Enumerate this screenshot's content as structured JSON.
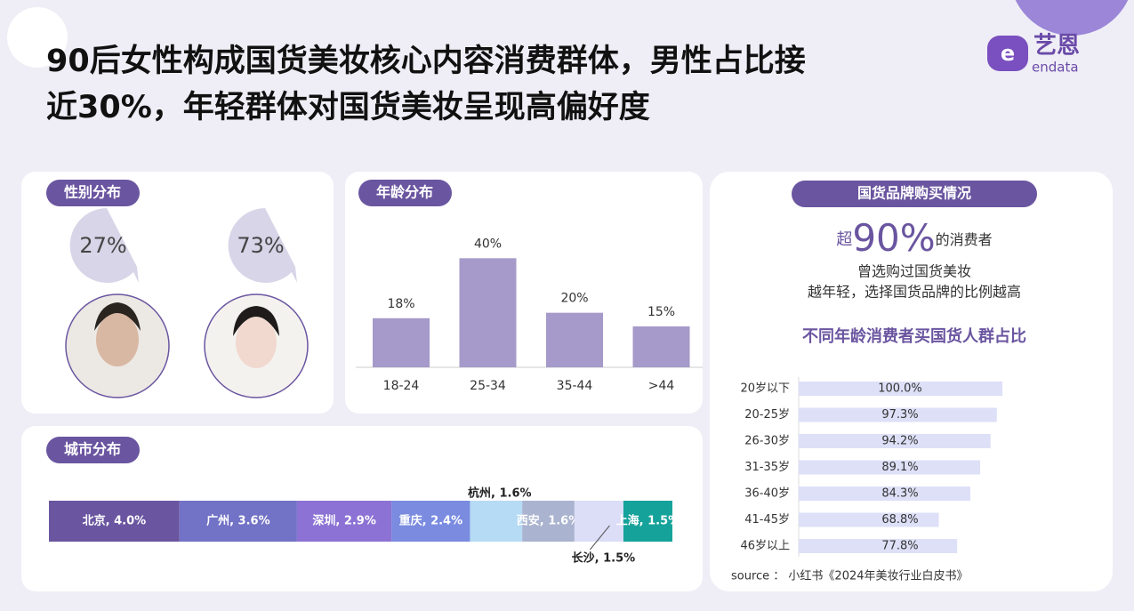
{
  "header": {
    "title_lines": [
      "90后女性构成国货美妆核心内容消费群体，男性占比接",
      "近30%，年轻群体对国货美妆呈现高偏好度"
    ],
    "logo": "艺恩",
    "logo_sub": "endata"
  },
  "gender": {
    "title": "性别分布",
    "shares": [
      "27%",
      "73%"
    ]
  },
  "chart_data": [
    {
      "type": "bar",
      "title": "年龄分布",
      "categories": [
        "18-24",
        "25-34",
        "35-44",
        ">44"
      ],
      "values": [
        18,
        40,
        20,
        15
      ],
      "value_labels": [
        "18%",
        "40%",
        "20%",
        "15%"
      ],
      "color": "#a59ac9",
      "ylim": [
        0,
        45
      ]
    },
    {
      "type": "stacked-hbar",
      "title": "城市分布",
      "values": [
        4.0,
        3.6,
        2.9,
        2.4,
        1.6,
        1.6,
        1.5,
        1.5
      ],
      "value_labels": [
        "北京, 4.0%",
        "广州, 3.6%",
        "深圳, 2.9%",
        "重庆, 2.4%",
        "杭州, 1.6%",
        "西安, 1.6%",
        "长沙, 1.5%",
        "上海, 1.5%"
      ],
      "colors": [
        "#6a55a0",
        "#7272c6",
        "#8c72d4",
        "#7a8be0",
        "#b6dbf5",
        "#aab3cf",
        "#dcdef8",
        "#14a29a"
      ]
    },
    {
      "type": "hbar",
      "title": "国货品牌购买情况",
      "callout": {
        "prefix": "超",
        "value": "90%",
        "suffix": "的消费者"
      },
      "notes": [
        "曾选购过国货美妆",
        "越年轻，选择国货品牌的比例越高"
      ],
      "subtitle": "不同年龄消费者买国货人群占比",
      "categories": [
        "20岁以下",
        "20-25岁",
        "26-30岁",
        "31-35岁",
        "36-40岁",
        "41-45岁",
        "46岁以上"
      ],
      "values": [
        100,
        97.3,
        94.2,
        89.1,
        84.3,
        68.8,
        77.8
      ],
      "value_labels": [
        "100.0%",
        "97.3%",
        "94.2%",
        "89.1%",
        "84.3%",
        "68.8%",
        "77.8%"
      ],
      "color": "#dde0f7",
      "xlim": [
        0,
        100
      ]
    }
  ],
  "source": "source ： 小红书《2024年美妆行业白皮书》"
}
